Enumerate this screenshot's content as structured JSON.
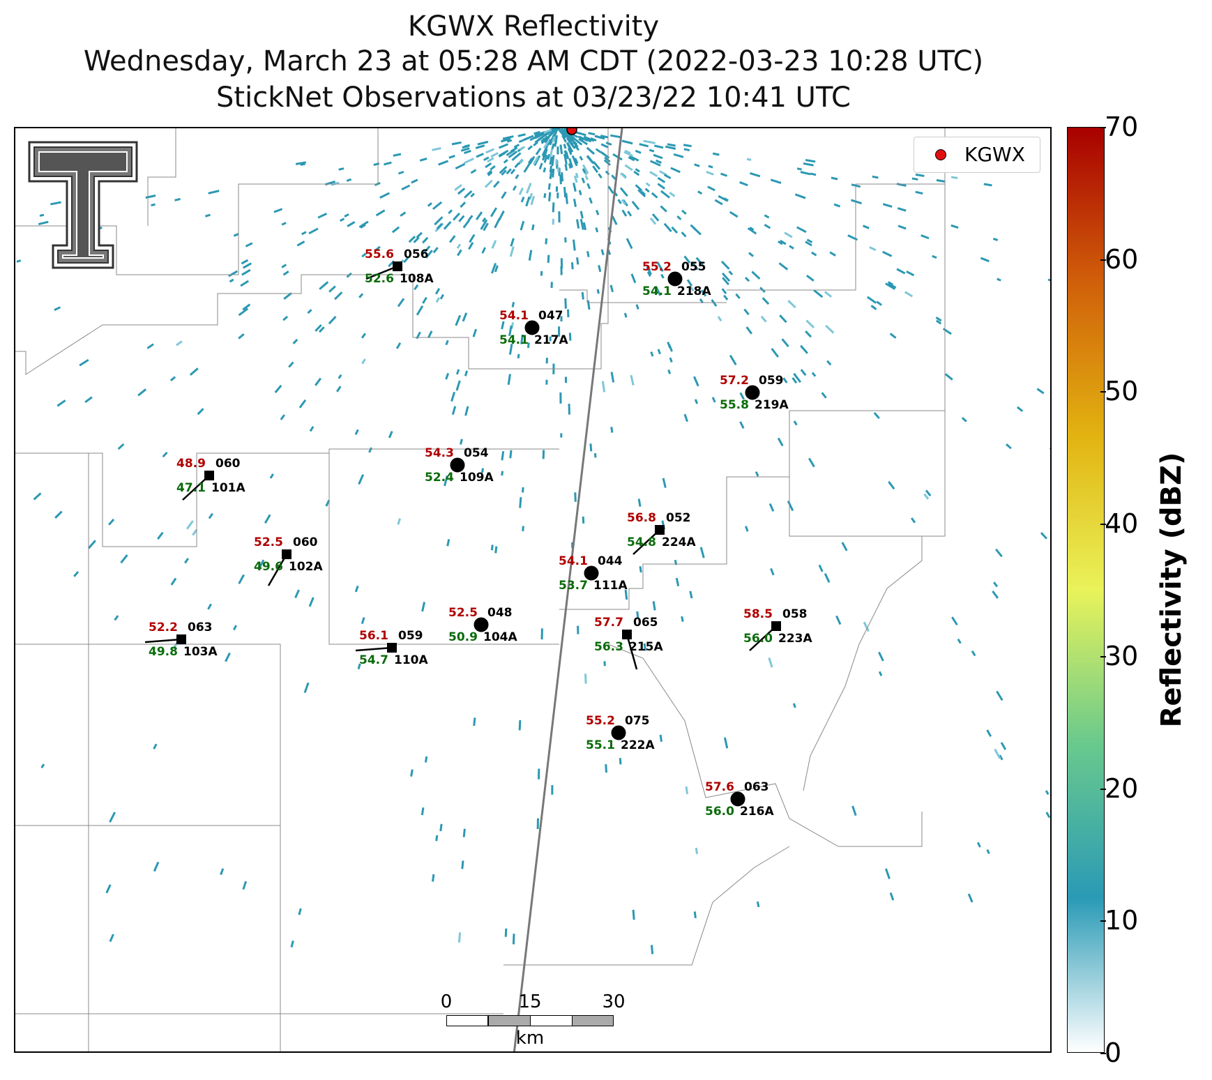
{
  "titles": {
    "line1": "KGWX Reflectivity",
    "line2": "Wednesday, March 23 at 05:28 AM CDT (2022-03-23 10:28 UTC)",
    "line3": "StickNet Observations at 03/23/22 10:41 UTC"
  },
  "legend": {
    "label": "KGWX",
    "color": "#e01010"
  },
  "colorbar": {
    "label": "Reflectivity (dBZ)",
    "ticks": [
      "0",
      "10",
      "20",
      "30",
      "40",
      "50",
      "60",
      "70"
    ],
    "colors": [
      "#ffffff",
      "#2a9ab5",
      "#69c98d",
      "#e9f35a",
      "#e2b311",
      "#d05f0a",
      "#a80000"
    ]
  },
  "scalebar": {
    "ticks": [
      "0",
      "15",
      "30"
    ],
    "unit": "km"
  },
  "colors": {
    "temp": "#b00000",
    "dewpoint": "#0a6b0a",
    "station": "#000000",
    "echo": "#2b98b3"
  },
  "stations": [
    {
      "id": "108A",
      "temp": "55.6",
      "dew": "52.6",
      "pres": "056",
      "marker": "square",
      "barb": "wsw"
    },
    {
      "id": "218A",
      "temp": "55.2",
      "dew": "54.1",
      "pres": "055",
      "marker": "circle",
      "barb": ""
    },
    {
      "id": "217A",
      "temp": "54.1",
      "dew": "54.1",
      "pres": "047",
      "marker": "circle",
      "barb": ""
    },
    {
      "id": "219A",
      "temp": "57.2",
      "dew": "55.8",
      "pres": "059",
      "marker": "circle",
      "barb": ""
    },
    {
      "id": "109A",
      "temp": "54.3",
      "dew": "52.4",
      "pres": "054",
      "marker": "circle",
      "barb": ""
    },
    {
      "id": "101A",
      "temp": "48.9",
      "dew": "47.1",
      "pres": "060",
      "marker": "square",
      "barb": "sw"
    },
    {
      "id": "224A",
      "temp": "56.8",
      "dew": "54.8",
      "pres": "052",
      "marker": "square",
      "barb": "sw"
    },
    {
      "id": "102A",
      "temp": "52.5",
      "dew": "49.6",
      "pres": "060",
      "marker": "square",
      "barb": "ssw"
    },
    {
      "id": "111A",
      "temp": "54.1",
      "dew": "53.7",
      "pres": "044",
      "marker": "circle",
      "barb": ""
    },
    {
      "id": "104A",
      "temp": "52.5",
      "dew": "50.9",
      "pres": "048",
      "marker": "circle",
      "barb": ""
    },
    {
      "id": "103A",
      "temp": "52.2",
      "dew": "49.8",
      "pres": "063",
      "marker": "square",
      "barb": "w"
    },
    {
      "id": "110A",
      "temp": "56.1",
      "dew": "54.7",
      "pres": "059",
      "marker": "square",
      "barb": "w"
    },
    {
      "id": "215A",
      "temp": "57.7",
      "dew": "56.3",
      "pres": "065",
      "marker": "square",
      "barb": "s"
    },
    {
      "id": "223A",
      "temp": "58.5",
      "dew": "56.0",
      "pres": "058",
      "marker": "square",
      "barb": "sw"
    },
    {
      "id": "222A",
      "temp": "55.2",
      "dew": "55.1",
      "pres": "075",
      "marker": "circle",
      "barb": ""
    },
    {
      "id": "216A",
      "temp": "57.6",
      "dew": "56.0",
      "pres": "063",
      "marker": "circle",
      "barb": ""
    }
  ]
}
